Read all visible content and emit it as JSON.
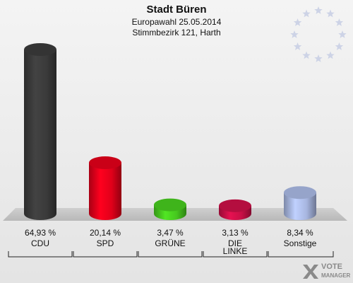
{
  "header": {
    "title": "Stadt Büren",
    "subtitle": "Europawahl 25.05.2014",
    "district": "Stimmbezirk 121, Harth"
  },
  "chart_data": {
    "type": "bar",
    "categories": [
      "CDU",
      "SPD",
      "GRÜNE",
      "DIE\nLINKE",
      "Sonstige"
    ],
    "value_labels": [
      "64,93 %",
      "20,14 %",
      "3,47 %",
      "3,13 %",
      "8,34 %"
    ],
    "series": [
      {
        "values": [
          64.93,
          20.14,
          3.47,
          3.13,
          8.34
        ],
        "colors": [
          "#3a3a3a",
          "#e0001a",
          "#46c81e",
          "#c80f46",
          "#a7b6e0"
        ]
      }
    ],
    "ylim": [
      0,
      64.93
    ],
    "grid": false,
    "legend": "none"
  },
  "logo": {
    "text_line1": "VOTE",
    "text_line2": "MANAGER"
  }
}
